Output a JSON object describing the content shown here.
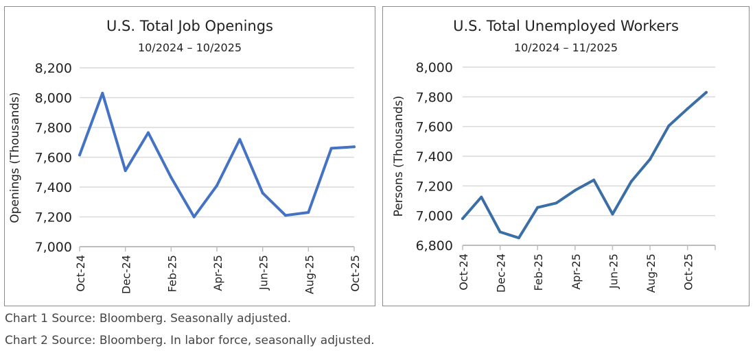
{
  "chart_data": [
    {
      "type": "line",
      "title": "U.S. Total Job Openings",
      "subtitle": "10/2024 – 10/2025",
      "xlabel": "",
      "ylabel": "Openings (Thousands)",
      "ylim": [
        7000,
        8200
      ],
      "yticks": [
        "7,000",
        "7,200",
        "7,400",
        "7,600",
        "7,800",
        "8,000",
        "8,200"
      ],
      "ytick_values": [
        7000,
        7200,
        7400,
        7600,
        7800,
        8000,
        8200
      ],
      "x": [
        "Oct-24",
        "Nov-24",
        "Dec-24",
        "Jan-25",
        "Feb-25",
        "Mar-25",
        "Apr-25",
        "May-25",
        "Jun-25",
        "Jul-25",
        "Aug-25",
        "Sep-25",
        "Oct-25"
      ],
      "xtick_labels": [
        "Oct-24",
        "",
        "Dec-24",
        "",
        "Feb-25",
        "",
        "Apr-25",
        "",
        "Jun-25",
        "",
        "Aug-25",
        "",
        "Oct-25"
      ],
      "series": [
        {
          "name": "Job Openings",
          "color": "#4472c4",
          "values": [
            7615,
            8030,
            7510,
            7765,
            7465,
            7200,
            7410,
            7720,
            7360,
            7210,
            7230,
            7660,
            7670
          ]
        }
      ],
      "grid": true,
      "legend": "none"
    },
    {
      "type": "line",
      "title": "U.S. Total Unemployed Workers",
      "subtitle": "10/2024 – 11/2025",
      "xlabel": "",
      "ylabel": "Persons (Thousands)",
      "ylim": [
        6800,
        8000
      ],
      "yticks": [
        "6,800",
        "7,000",
        "7,200",
        "7,400",
        "7,600",
        "7,800",
        "8,000"
      ],
      "ytick_values": [
        6800,
        7000,
        7200,
        7400,
        7600,
        7800,
        8000
      ],
      "x": [
        "Oct-24",
        "Nov-24",
        "Dec-24",
        "Jan-25",
        "Feb-25",
        "Mar-25",
        "Apr-25",
        "May-25",
        "Jun-25",
        "Jul-25",
        "Aug-25",
        "Sep-25",
        "Oct-25",
        "Nov-25"
      ],
      "xtick_labels": [
        "Oct-24",
        "",
        "Dec-24",
        "",
        "Feb-25",
        "",
        "Apr-25",
        "",
        "Jun-25",
        "",
        "Aug-25",
        "",
        "Oct-25",
        ""
      ],
      "series": [
        {
          "name": "Unemployed Workers",
          "color": "#3a6ea5",
          "values": [
            6980,
            7125,
            6890,
            6850,
            7055,
            7085,
            7170,
            7240,
            7010,
            7230,
            7380,
            7605,
            7720,
            7830
          ]
        }
      ],
      "grid": true,
      "legend": "none"
    }
  ],
  "notes": [
    "Chart 1 Source: Bloomberg. Seasonally adjusted.",
    "Chart 2 Source: Bloomberg. In labor force, seasonally adjusted."
  ]
}
